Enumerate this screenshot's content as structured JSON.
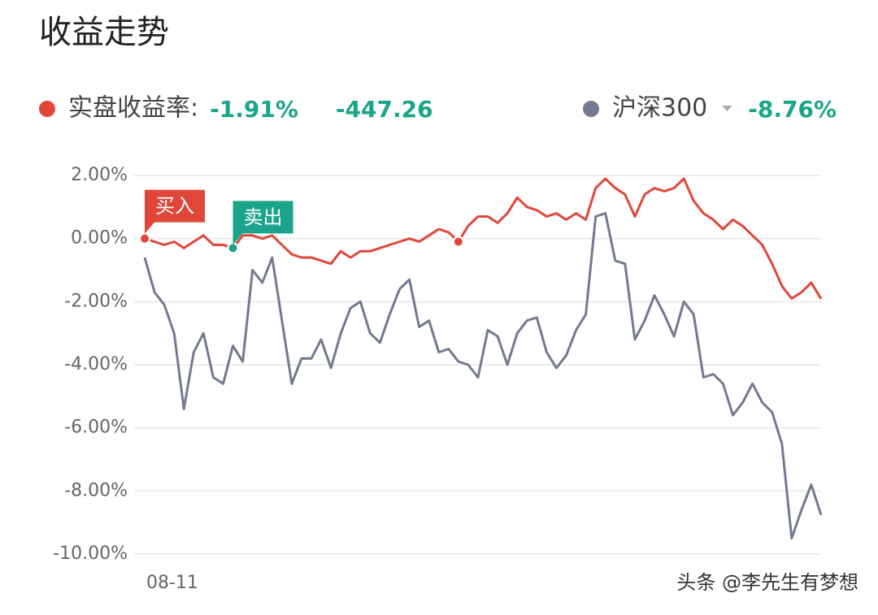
{
  "chart_data": {
    "type": "line",
    "title": "收益走势",
    "categories": [
      "08-11",
      null,
      null,
      null,
      null,
      null,
      null,
      null,
      null,
      null,
      null,
      null,
      null,
      null,
      null,
      null,
      null,
      null,
      null,
      null,
      null,
      null,
      null,
      null,
      null,
      null,
      null,
      null,
      null,
      null,
      null,
      null,
      null,
      null,
      null,
      null,
      null,
      null,
      null,
      null,
      null,
      null,
      null,
      null,
      null,
      null,
      null,
      null,
      null,
      null,
      null,
      null,
      null,
      null,
      null,
      null,
      null,
      null,
      null,
      null,
      null,
      null,
      null,
      null,
      null,
      null,
      null,
      null,
      null,
      null
    ],
    "series": [
      {
        "name": "实盘收益率:",
        "color": "#e0473a",
        "stats": [
          "-1.91%",
          "-447.26"
        ],
        "values": [
          0,
          -0.1,
          -0.2,
          -0.1,
          -0.3,
          -0.1,
          0.1,
          -0.2,
          -0.2,
          -0.3,
          0.1,
          0.1,
          0,
          0.1,
          -0.2,
          -0.5,
          -0.6,
          -0.6,
          -0.7,
          -0.8,
          -0.4,
          -0.6,
          -0.4,
          -0.4,
          -0.3,
          -0.2,
          -0.1,
          0,
          -0.1,
          0.1,
          0.3,
          0.2,
          -0.1,
          0.4,
          0.7,
          0.7,
          0.5,
          0.8,
          1.3,
          1.0,
          0.9,
          0.7,
          0.8,
          0.6,
          0.8,
          0.6,
          1.6,
          1.9,
          1.6,
          1.4,
          0.7,
          1.4,
          1.6,
          1.5,
          1.6,
          1.9,
          1.2,
          0.8,
          0.6,
          0.3,
          0.6,
          0.4,
          0.1,
          -0.2,
          -0.8,
          -1.5,
          -1.9,
          -1.7,
          -1.4,
          -1.91
        ]
      },
      {
        "name": "沪深300",
        "color": "#737a90",
        "stats": [
          "-8.76%"
        ],
        "values": [
          -0.6,
          -1.7,
          -2.1,
          -3.0,
          -5.4,
          -3.6,
          -3.0,
          -4.4,
          -4.6,
          -3.4,
          -3.9,
          -1.0,
          -1.4,
          -0.6,
          -2.6,
          -4.6,
          -3.8,
          -3.8,
          -3.2,
          -4.1,
          -3.0,
          -2.2,
          -2.0,
          -3.0,
          -3.3,
          -2.4,
          -1.6,
          -1.3,
          -2.8,
          -2.6,
          -3.6,
          -3.5,
          -3.9,
          -4.0,
          -4.4,
          -2.9,
          -3.1,
          -4.0,
          -3.0,
          -2.6,
          -2.5,
          -3.6,
          -4.1,
          -3.7,
          -2.9,
          -2.4,
          0.7,
          0.8,
          -0.7,
          -0.8,
          -3.2,
          -2.6,
          -1.8,
          -2.4,
          -3.1,
          -2.0,
          -2.4,
          -4.4,
          -4.3,
          -4.6,
          -5.6,
          -5.2,
          -4.6,
          -5.2,
          -5.5,
          -6.5,
          -9.5,
          -8.6,
          -7.8,
          -8.76
        ]
      }
    ],
    "annotations": [
      {
        "text": "买入",
        "index": 0,
        "color": "#e0473a"
      },
      {
        "text": "卖出",
        "index": 9,
        "color": "#1aa58a"
      }
    ],
    "markers": [
      32
    ],
    "ylim": [
      -10,
      2
    ],
    "yticks": [
      {
        "value": 2,
        "label": "2.00%"
      },
      {
        "value": 0,
        "label": "0.00%"
      },
      {
        "value": -2,
        "label": "-2.00%"
      },
      {
        "value": -4,
        "label": "-4.00%"
      },
      {
        "value": -6,
        "label": "-6.00%"
      },
      {
        "value": -8,
        "label": "-8.00%"
      },
      {
        "value": -10,
        "label": "-10.00%"
      }
    ],
    "grid": true,
    "stat_color": "#1aa58a",
    "watermark": "头条 @李先生有梦想"
  }
}
